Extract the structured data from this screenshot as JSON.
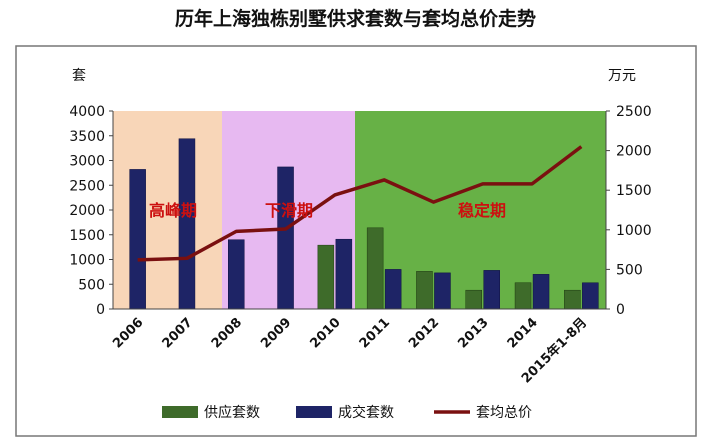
{
  "chart_data": {
    "type": "bar",
    "title": "历年上海独栋别墅供求套数与套均总价走势",
    "categories": [
      "2006",
      "2007",
      "2008",
      "2009",
      "2010",
      "2011",
      "2012",
      "2013",
      "2014",
      "2015年1-8月"
    ],
    "series": [
      {
        "name": "供应套数",
        "kind": "bar",
        "axis": "left",
        "color": "#3e6b2a",
        "values": [
          null,
          null,
          null,
          null,
          1290,
          1640,
          760,
          380,
          530,
          380
        ]
      },
      {
        "name": "成交套数",
        "kind": "bar",
        "axis": "left",
        "color": "#1e2466",
        "values": [
          2820,
          3440,
          1400,
          2870,
          1410,
          800,
          730,
          780,
          700,
          530
        ]
      },
      {
        "name": "套均总价",
        "kind": "line",
        "axis": "right",
        "color": "#7a1010",
        "values": [
          620,
          640,
          980,
          1010,
          1440,
          1630,
          1350,
          1580,
          1580,
          2050
        ]
      }
    ],
    "ylabel": "套",
    "ylim": [
      0,
      4000
    ],
    "yticks": [
      0,
      500,
      1000,
      1500,
      2000,
      2500,
      3000,
      3500,
      4000
    ],
    "y2label": "万元",
    "y2lim": [
      0,
      2500
    ],
    "y2ticks": [
      0,
      500,
      1000,
      1500,
      2000,
      2500
    ],
    "phases": [
      {
        "label": "高峰期",
        "from": 0,
        "to": 1,
        "color": "#f7d2b0"
      },
      {
        "label": "下滑期",
        "from": 2,
        "to": 3,
        "color": "#e4b1f0"
      },
      {
        "label": "稳定期",
        "from": 5,
        "to": 9,
        "color": "#57a832"
      }
    ],
    "grid": false,
    "legend_position": "bottom"
  }
}
